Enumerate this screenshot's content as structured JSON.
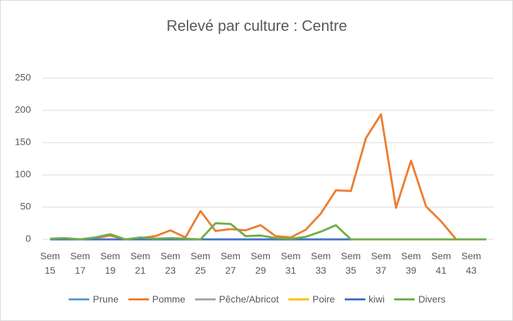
{
  "chart_data": {
    "type": "line",
    "title": "Relevé par culture : Centre",
    "categories": [
      "Sem 15",
      null,
      "Sem 17",
      null,
      "Sem 19",
      null,
      "Sem 21",
      null,
      "Sem 23",
      null,
      "Sem 25",
      null,
      "Sem 27",
      null,
      "Sem 29",
      null,
      "Sem 31",
      null,
      "Sem 33",
      null,
      "Sem 35",
      null,
      "Sem 37",
      null,
      "Sem 39",
      null,
      "Sem 41",
      null,
      "Sem 43",
      null
    ],
    "series": [
      {
        "name": "Prune",
        "color": "#5b9bd5",
        "values": [
          0,
          0,
          0,
          0,
          0,
          0,
          0,
          0,
          0,
          0,
          0,
          0,
          0,
          0,
          0,
          0,
          0,
          0,
          0,
          0,
          0,
          0,
          0,
          0,
          0,
          0,
          0,
          0,
          0,
          0
        ]
      },
      {
        "name": "Pomme",
        "color": "#ed7d31",
        "values": [
          0,
          1,
          0,
          2,
          6,
          0,
          2,
          5,
          14,
          3,
          44,
          13,
          16,
          14,
          22,
          5,
          3,
          15,
          40,
          76,
          75,
          157,
          194,
          49,
          122,
          51,
          28,
          0,
          0,
          0
        ]
      },
      {
        "name": "Pêche/Abricot",
        "color": "#a5a5a5",
        "values": [
          0,
          0,
          0,
          0,
          0,
          0,
          0,
          0,
          0,
          0,
          0,
          0,
          0,
          0,
          0,
          0,
          0,
          0,
          0,
          0,
          0,
          0,
          0,
          0,
          0,
          0,
          0,
          0,
          0,
          0
        ]
      },
      {
        "name": "Poire",
        "color": "#ffc000",
        "values": [
          0,
          0,
          0,
          0,
          0,
          0,
          0,
          0,
          0,
          0,
          0,
          0,
          0,
          0,
          0,
          0,
          0,
          0,
          0,
          0,
          0,
          0,
          0,
          0,
          0,
          0,
          0,
          0,
          0,
          0
        ]
      },
      {
        "name": "kiwi",
        "color": "#4472c4",
        "values": [
          0,
          0,
          0,
          0,
          0,
          0,
          0,
          0,
          0,
          0,
          0,
          0,
          0,
          0,
          0,
          0,
          0,
          0,
          0,
          0,
          0,
          0,
          0,
          0,
          0,
          0,
          0,
          0,
          0,
          0
        ]
      },
      {
        "name": "Divers",
        "color": "#70ad47",
        "values": [
          1,
          2,
          0,
          3,
          8,
          0,
          3,
          1,
          2,
          1,
          0,
          25,
          24,
          5,
          6,
          2,
          1,
          4,
          12,
          22,
          0,
          0,
          0,
          0,
          0,
          0,
          0,
          0,
          0,
          0
        ]
      }
    ],
    "ylim": [
      0,
      250
    ],
    "yticks": [
      0,
      50,
      100,
      150,
      200,
      250
    ],
    "grid": true
  }
}
